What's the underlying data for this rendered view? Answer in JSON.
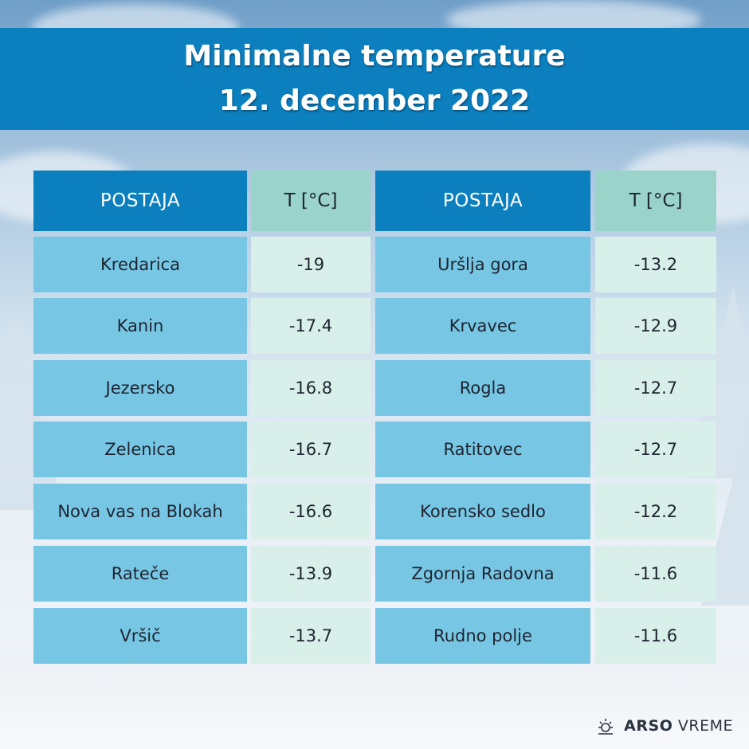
{
  "header": {
    "title_line1": "Minimalne temperature",
    "title_line2": "12. december 2022"
  },
  "chart_data": {
    "type": "table",
    "columns": [
      "POSTAJA",
      "T [°C]",
      "POSTAJA",
      "T [°C]"
    ],
    "left": [
      {
        "station": "Kredarica",
        "temp": "-19"
      },
      {
        "station": "Kanin",
        "temp": "-17.4"
      },
      {
        "station": "Jezersko",
        "temp": "-16.8"
      },
      {
        "station": "Zelenica",
        "temp": "-16.7"
      },
      {
        "station": "Nova vas na Blokah",
        "temp": "-16.6"
      },
      {
        "station": "Rateče",
        "temp": "-13.9"
      },
      {
        "station": "Vršič",
        "temp": "-13.7"
      }
    ],
    "right": [
      {
        "station": "Uršlja gora",
        "temp": "-13.2"
      },
      {
        "station": "Krvavec",
        "temp": "-12.9"
      },
      {
        "station": "Rogla",
        "temp": "-12.7"
      },
      {
        "station": "Ratitovec",
        "temp": "-12.7"
      },
      {
        "station": "Korensko sedlo",
        "temp": "-12.2"
      },
      {
        "station": "Zgornja Radovna",
        "temp": "-11.6"
      },
      {
        "station": "Rudno polje",
        "temp": "-11.6"
      }
    ]
  },
  "footer": {
    "brand_bold": "ARSO",
    "brand_light": "VREME",
    "icon": "sun-icon"
  },
  "colors": {
    "header_blue": "#0c7fbf",
    "temp_header": "#99d3c9",
    "station_cell": "#77c7e4",
    "temp_cell": "#d9efe9"
  }
}
